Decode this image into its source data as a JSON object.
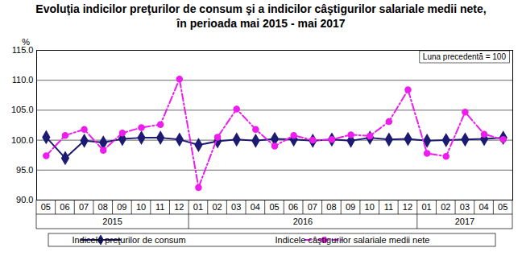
{
  "chart_data": {
    "type": "line",
    "title": "Evoluţia indicilor preţurilor de consum şi a indicilor câştigurilor salariale medii nete,",
    "subtitle": "în perioada mai 2015 - mai 2017",
    "y_label": "%",
    "annotation": "Luna precedentă = 100",
    "categories": [
      "05",
      "06",
      "07",
      "08",
      "09",
      "10",
      "11",
      "12",
      "01",
      "02",
      "03",
      "04",
      "05",
      "06",
      "07",
      "08",
      "09",
      "10",
      "11",
      "12",
      "01",
      "02",
      "03",
      "04",
      "05"
    ],
    "x_groups": [
      {
        "label": "2015",
        "span": 8
      },
      {
        "label": "2016",
        "span": 12
      },
      {
        "label": "2017",
        "span": 5
      }
    ],
    "series": [
      {
        "name": "Indicele preţurilor de consum",
        "color": "#1c1a72",
        "marker": "diamond",
        "line_style": "solid",
        "values": [
          100.5,
          97.0,
          99.9,
          99.6,
          100.2,
          100.4,
          100.4,
          100.1,
          99.2,
          99.8,
          100.1,
          99.9,
          100.2,
          100.1,
          99.9,
          100.1,
          99.9,
          100.4,
          100.1,
          100.2,
          99.9,
          100.0,
          100.1,
          100.2,
          100.4
        ]
      },
      {
        "name": "Indicele câştigurilor salariale medii nete",
        "color": "#ee1cee",
        "marker": "circle",
        "line_style": "dashdot",
        "values": [
          97.4,
          100.8,
          101.8,
          98.3,
          101.2,
          102.1,
          102.6,
          110.2,
          92.1,
          100.5,
          105.2,
          101.8,
          99.0,
          100.8,
          100.0,
          100.1,
          100.9,
          100.7,
          103.1,
          108.4,
          97.8,
          97.3,
          104.7,
          101.0,
          100.1
        ]
      }
    ],
    "ylim": [
      90,
      115
    ],
    "yticks": [
      {
        "value": 90,
        "label": "90.0"
      },
      {
        "value": 95,
        "label": "95.0"
      },
      {
        "value": 100,
        "label": "100.0"
      },
      {
        "value": 105,
        "label": "105.0"
      },
      {
        "value": 110,
        "label": "110.0"
      },
      {
        "value": 115,
        "label": "115.0"
      }
    ],
    "grid": true,
    "legend": "bottom"
  }
}
